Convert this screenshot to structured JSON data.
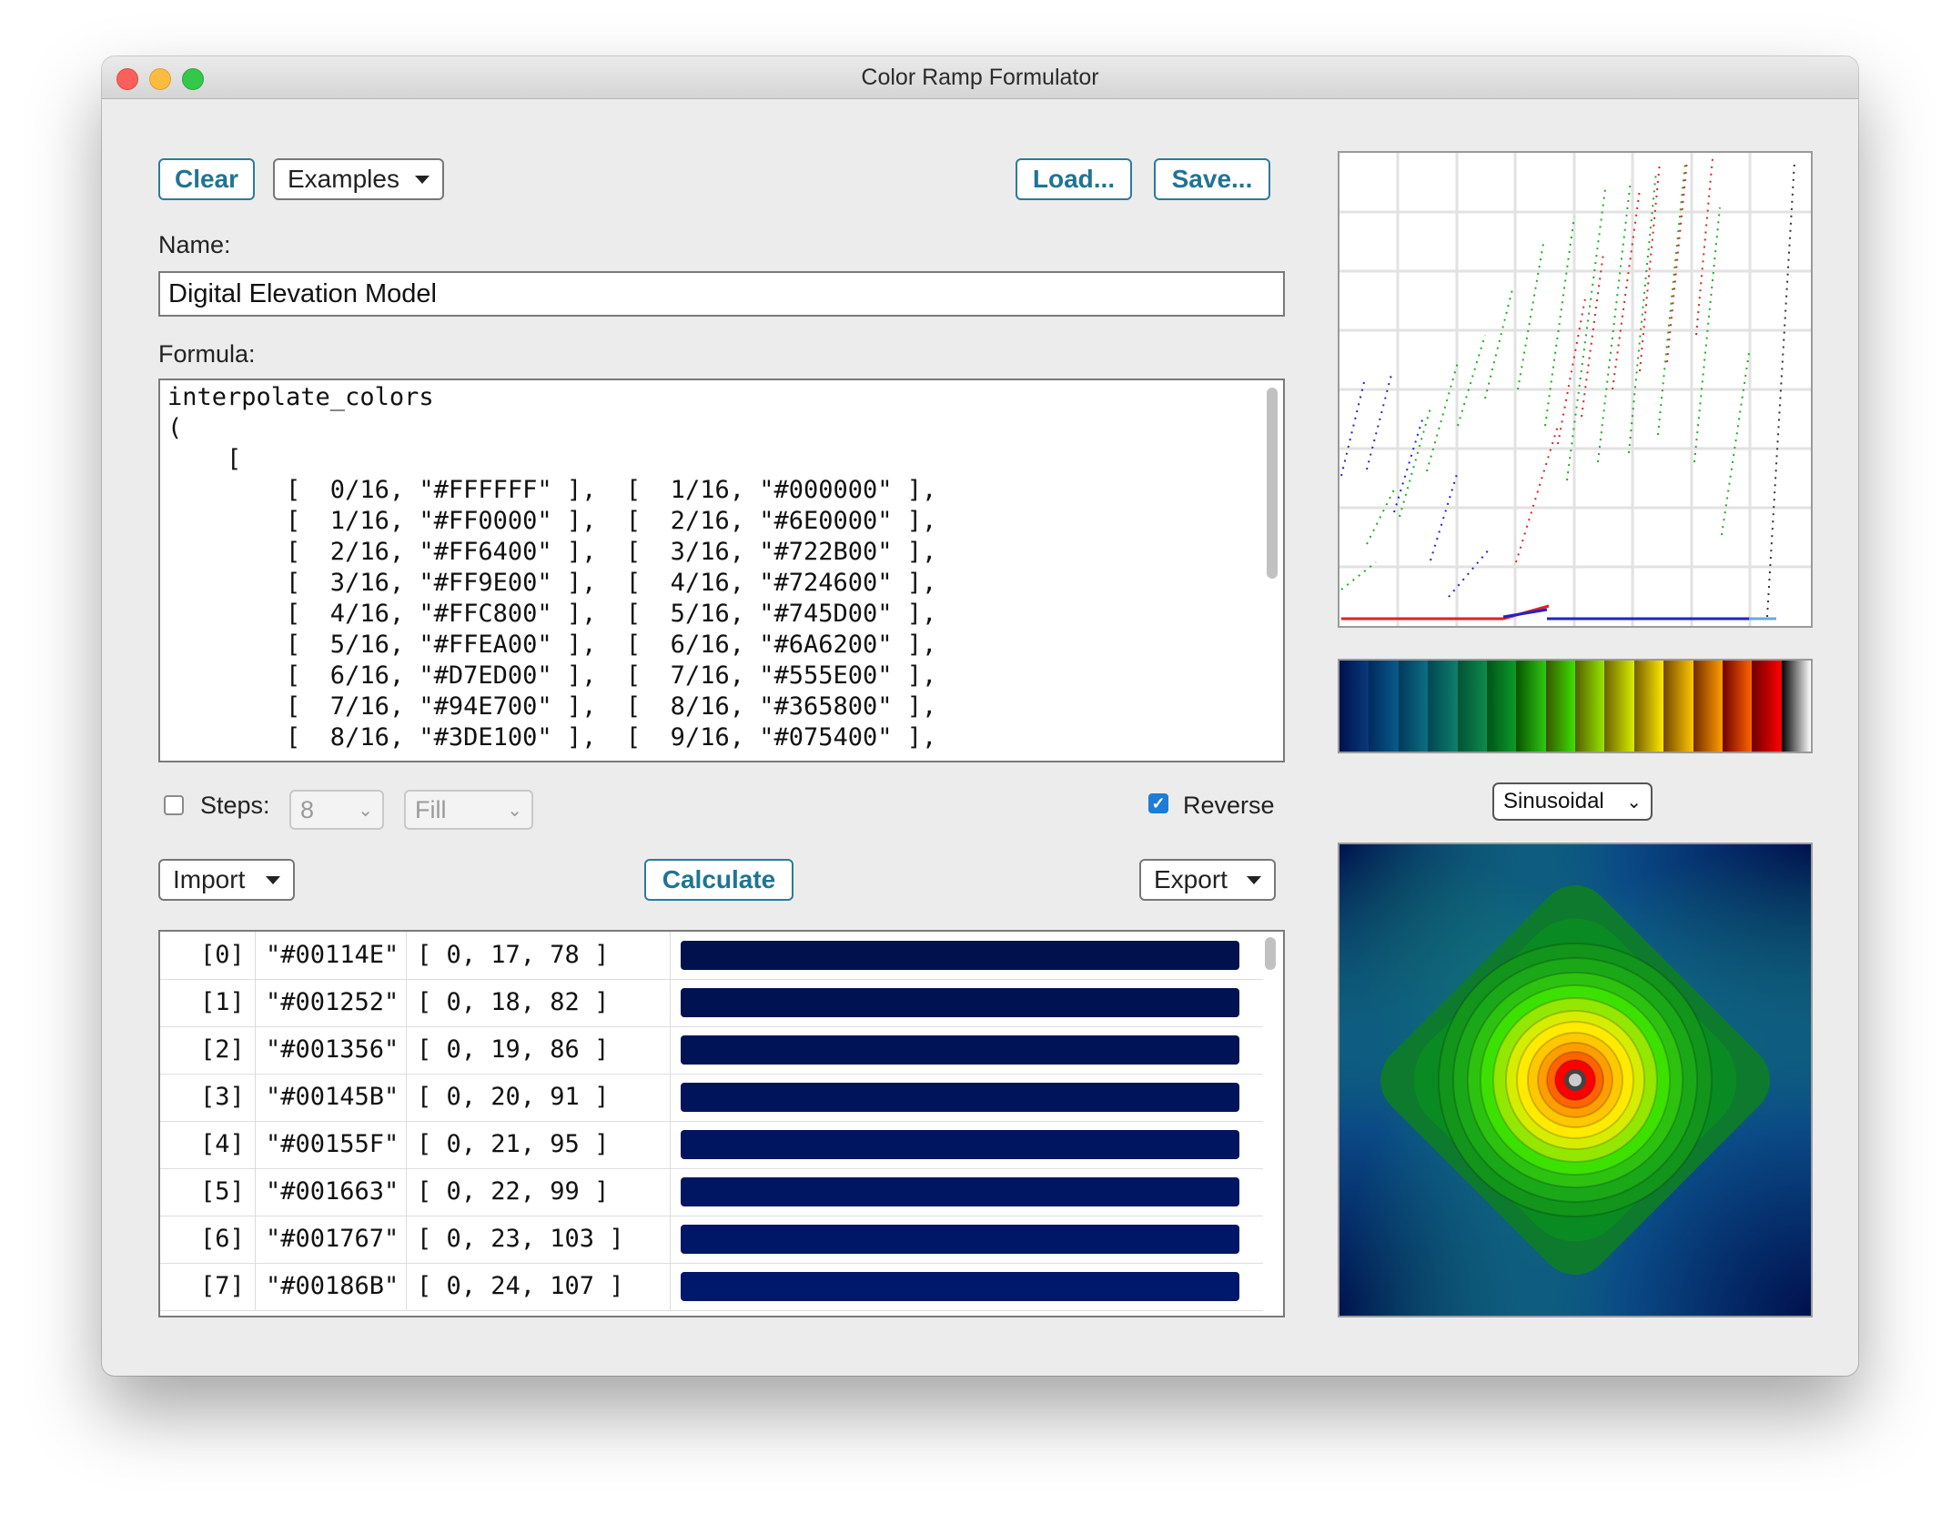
{
  "window": {
    "title": "Color Ramp Formulator"
  },
  "toolbar": {
    "clear_label": "Clear",
    "examples_label": "Examples",
    "load_label": "Load...",
    "save_label": "Save..."
  },
  "name": {
    "label": "Name:",
    "value": "Digital Elevation Model"
  },
  "formula": {
    "label": "Formula:",
    "lines": [
      "interpolate_colors",
      "(",
      "    [",
      "        [  0/16, \"#FFFFFF\" ],  [  1/16, \"#000000\" ],",
      "        [  1/16, \"#FF0000\" ],  [  2/16, \"#6E0000\" ],",
      "        [  2/16, \"#FF6400\" ],  [  3/16, \"#722B00\" ],",
      "        [  3/16, \"#FF9E00\" ],  [  4/16, \"#724600\" ],",
      "        [  4/16, \"#FFC800\" ],  [  5/16, \"#745D00\" ],",
      "        [  5/16, \"#FFEA00\" ],  [  6/16, \"#6A6200\" ],",
      "        [  6/16, \"#D7ED00\" ],  [  7/16, \"#555E00\" ],",
      "        [  7/16, \"#94E700\" ],  [  8/16, \"#365800\" ],",
      "        [  8/16, \"#3DE100\" ],  [  9/16, \"#075400\" ],"
    ]
  },
  "options": {
    "steps_label": "Steps:",
    "steps_checked": false,
    "steps_value": "8",
    "fill_value": "Fill",
    "reverse_label": "Reverse",
    "reverse_checked": true
  },
  "actions": {
    "import_label": "Import",
    "calculate_label": "Calculate",
    "export_label": "Export"
  },
  "results": [
    {
      "index": "[0]",
      "hex": "\"#00114E\"",
      "rgb": "[ 0, 17, 78 ]",
      "color": "#00114E"
    },
    {
      "index": "[1]",
      "hex": "\"#001252\"",
      "rgb": "[ 0, 18, 82 ]",
      "color": "#001252"
    },
    {
      "index": "[2]",
      "hex": "\"#001356\"",
      "rgb": "[ 0, 19, 86 ]",
      "color": "#001356"
    },
    {
      "index": "[3]",
      "hex": "\"#00145B\"",
      "rgb": "[ 0, 20, 91 ]",
      "color": "#00145B"
    },
    {
      "index": "[4]",
      "hex": "\"#00155F\"",
      "rgb": "[ 0, 21, 95 ]",
      "color": "#00155F"
    },
    {
      "index": "[5]",
      "hex": "\"#001663\"",
      "rgb": "[ 0, 22, 99 ]",
      "color": "#001663"
    },
    {
      "index": "[6]",
      "hex": "\"#001767\"",
      "rgb": "[ 0, 23, 103 ]",
      "color": "#001767"
    },
    {
      "index": "[7]",
      "hex": "\"#00186B\"",
      "rgb": "[ 0, 24, 107 ]",
      "color": "#00186B"
    }
  ],
  "preview": {
    "mode_value": "Sinusoidal"
  },
  "colors": {
    "accent": "#1f7494",
    "checkbox": "#1c7cd6"
  },
  "icons": {
    "dropdown": "caret-down-icon",
    "select": "chevron-down-icon",
    "check": "checkmark-icon"
  }
}
